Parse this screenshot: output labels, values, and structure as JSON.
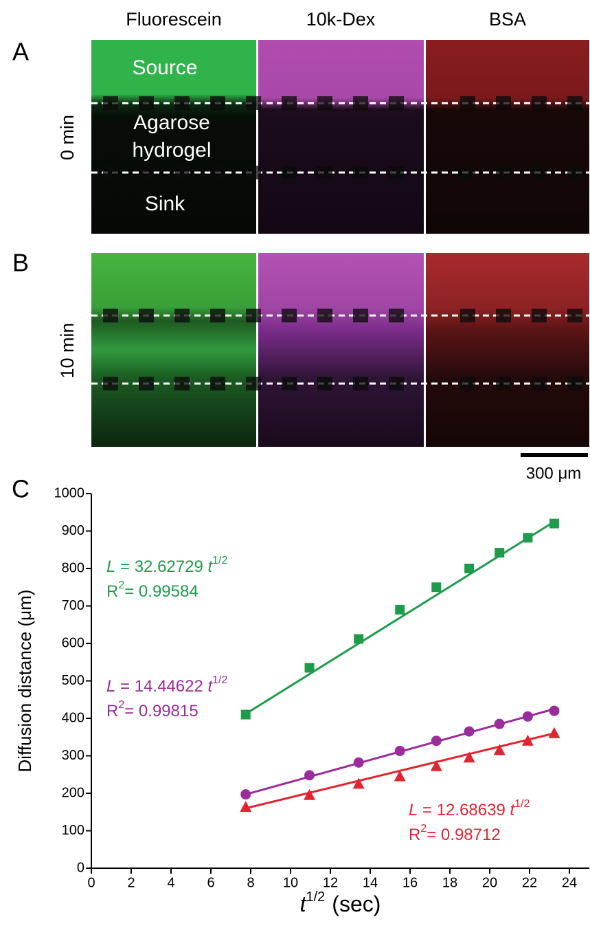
{
  "figure": {
    "panels": [
      "A",
      "B",
      "C"
    ],
    "columns": [
      "Fluorescein",
      "10k-Dex",
      "BSA"
    ],
    "rows": [
      "0 min",
      "10 min"
    ],
    "image_labels": {
      "source": "Source",
      "gel_1": "Agarose",
      "gel_2": "hydrogel",
      "sink": "Sink"
    },
    "scale_bar": "300 μm"
  },
  "chart_data": {
    "type": "scatter",
    "x_label": {
      "var": "t",
      "sup": "1/2",
      "unit": "(sec)"
    },
    "y_label": "Diffusion distance (μm)",
    "x": [
      7.75,
      10.95,
      13.42,
      15.49,
      17.32,
      18.97,
      20.49,
      21.91,
      23.24
    ],
    "series": [
      {
        "color": "#1e9c4c",
        "marker": "square",
        "values": [
          410,
          535,
          612,
          690,
          750,
          800,
          842,
          882,
          920
        ],
        "fit_x": [
          7.75,
          23.24
        ],
        "fit_values": [
          412,
          925
        ]
      },
      {
        "color": "#9a2c9c",
        "marker": "circle",
        "values": [
          197,
          248,
          282,
          313,
          340,
          365,
          385,
          405,
          420
        ],
        "fit_x": [
          7.75,
          23.24
        ],
        "fit_values": [
          197,
          425
        ]
      },
      {
        "color": "#e02430",
        "marker": "triangle",
        "values": [
          163,
          195,
          225,
          245,
          272,
          295,
          315,
          340,
          360
        ],
        "fit_x": [
          7.75,
          23.24
        ],
        "fit_values": [
          160,
          360
        ]
      }
    ],
    "annotations": [
      {
        "color": "#1e9c4c",
        "var": "L",
        "eq": " = 32.62729 ",
        "t": "t",
        "sup": "1/2",
        "r": "R",
        "r_sup": "2",
        "r_val": "= 0.99584"
      },
      {
        "color": "#9a2c9c",
        "var": "L",
        "eq": " = 14.44622 ",
        "t": "t",
        "sup": "1/2",
        "r": "R",
        "r_sup": "2",
        "r_val": "= 0.99815"
      },
      {
        "color": "#e02430",
        "var": "L",
        "eq": " = 12.68639 ",
        "t": "t",
        "sup": "1/2",
        "r": "R",
        "r_sup": "2",
        "r_val": "= 0.98712"
      }
    ],
    "xlim": [
      0,
      25
    ],
    "xticks": [
      0,
      2,
      4,
      6,
      8,
      10,
      12,
      14,
      16,
      18,
      20,
      22,
      24
    ],
    "ylim": [
      0,
      1000
    ],
    "yticks": [
      0,
      100,
      200,
      300,
      400,
      500,
      600,
      700,
      800,
      900,
      1000
    ]
  }
}
